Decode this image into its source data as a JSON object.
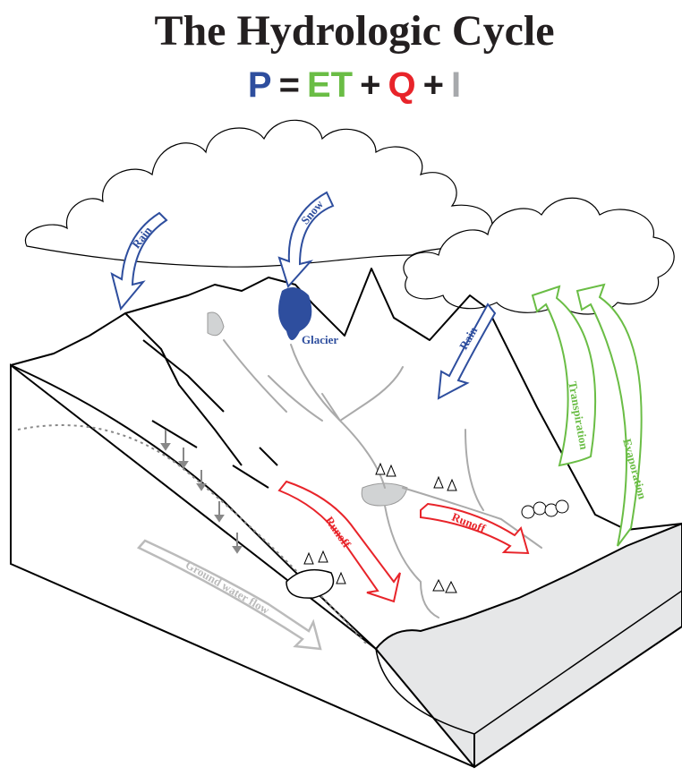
{
  "title": "The Hydrologic Cycle",
  "equation": [
    {
      "text": "P",
      "color": "#2e4e9e"
    },
    {
      "text": "=",
      "color": "#231f20"
    },
    {
      "text": "ET",
      "color": "#6abd45"
    },
    {
      "text": "+",
      "color": "#231f20"
    },
    {
      "text": "Q",
      "color": "#e8242a"
    },
    {
      "text": "+",
      "color": "#231f20"
    },
    {
      "text": "I",
      "color": "#a7a9ac"
    }
  ],
  "labels": {
    "rain_left": "Rain",
    "snow": "Snow",
    "glacier": "Glacier",
    "rain_right": "Rain",
    "transpiration": "Transpiration",
    "evaporation": "Evaporation",
    "runoff_left": "Runoff",
    "runoff_right": "Runoff",
    "ground_water_flow": "Ground water flow"
  }
}
